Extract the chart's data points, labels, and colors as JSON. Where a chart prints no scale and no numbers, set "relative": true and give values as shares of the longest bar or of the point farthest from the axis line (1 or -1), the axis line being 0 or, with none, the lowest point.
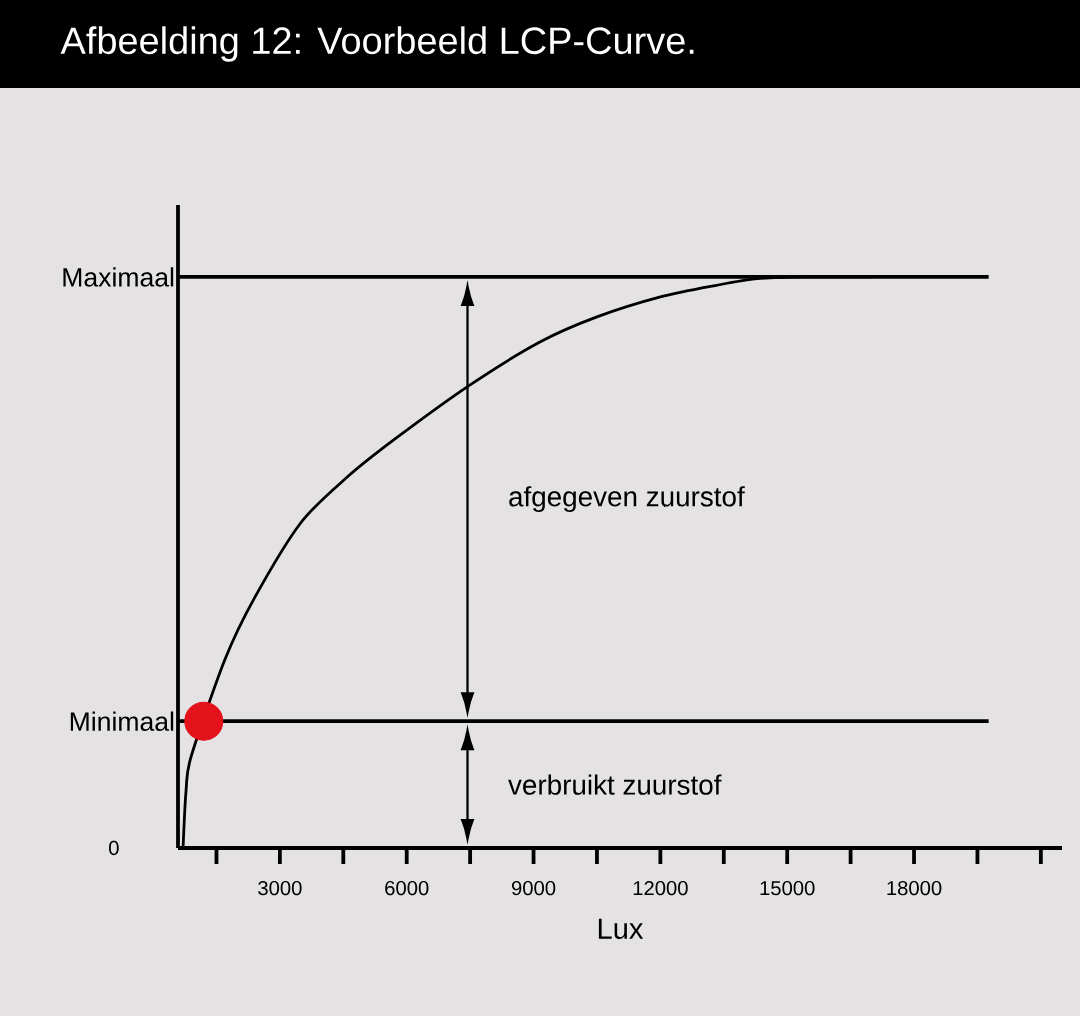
{
  "chart_data": {
    "type": "line",
    "title": "Afbeelding 12: Voorbeeld LCP-Curve.",
    "xlabel": "Lux",
    "relative": true,
    "xlim": [
      590,
      21500
    ],
    "xticks": [
      {
        "value": 1500,
        "label": null
      },
      3000,
      {
        "value": 4500,
        "label": null
      },
      6000,
      {
        "value": 7500,
        "label": null
      },
      9000,
      {
        "value": 10500,
        "label": null
      },
      12000,
      {
        "value": 13500,
        "label": null
      },
      15000,
      {
        "value": 16500,
        "label": null
      },
      18000,
      {
        "value": 19500,
        "label": null
      },
      {
        "value": 21000,
        "label": null
      }
    ],
    "series": [
      {
        "color": "#000000",
        "x": [
          710,
          780,
          900,
          1700,
          2400,
          3500,
          4600,
          5700,
          7500,
          9150,
          10500,
          12000,
          13300,
          14300,
          15500,
          17000
        ],
        "values": [
          0,
          0.1,
          0.16,
          0.33,
          0.438,
          0.57,
          0.65,
          0.715,
          0.811,
          0.886,
          0.93,
          0.965,
          0.985,
          0.997,
          1,
          1
        ]
      },
      {
        "type": "scatter",
        "marker": "circle",
        "color": "#e3121b",
        "x": [
          1200
        ],
        "values": [
          0.222
        ]
      }
    ],
    "ref_lines": [
      {
        "axis": "y",
        "value": 1,
        "label": "Maximaal",
        "color": "#000000"
      },
      {
        "axis": "y",
        "value": 0.222,
        "label": "Minimaal",
        "color": "#000000"
      }
    ],
    "annotations": [
      "0",
      "afgegeven zuurstof",
      "verbruikt zuurstof"
    ]
  }
}
